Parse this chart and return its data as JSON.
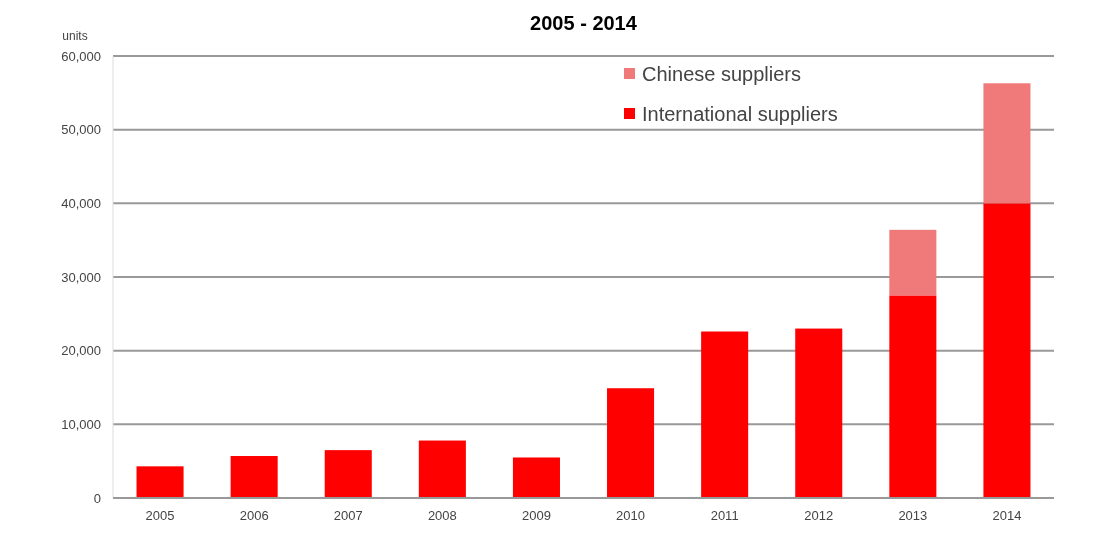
{
  "chart_data": {
    "type": "bar",
    "title": "2005 - 2014",
    "ylabel": "units",
    "categories": [
      "2005",
      "2006",
      "2007",
      "2008",
      "2009",
      "2010",
      "2011",
      "2012",
      "2013",
      "2014"
    ],
    "stacked": true,
    "series": [
      {
        "name": "International suppliers",
        "color": "#ff0000",
        "values": [
          4300,
          5700,
          6500,
          7800,
          5500,
          14900,
          22600,
          23000,
          27500,
          40000
        ]
      },
      {
        "name": "Chinese suppliers",
        "color": "#f07a7a",
        "values": [
          null,
          null,
          null,
          null,
          null,
          null,
          null,
          null,
          8900,
          16300
        ]
      }
    ],
    "ylim": [
      0,
      60000
    ],
    "yticks": [
      {
        "value": 0,
        "label": "0"
      },
      {
        "value": 10000,
        "label": "10,000"
      },
      {
        "value": 20000,
        "label": "20,000"
      },
      {
        "value": 30000,
        "label": "30,000"
      },
      {
        "value": 40000,
        "label": "40,000"
      },
      {
        "value": 50000,
        "label": "50,000"
      },
      {
        "value": 60000,
        "label": "60,000"
      }
    ],
    "grid": "y",
    "legend": "top right"
  }
}
